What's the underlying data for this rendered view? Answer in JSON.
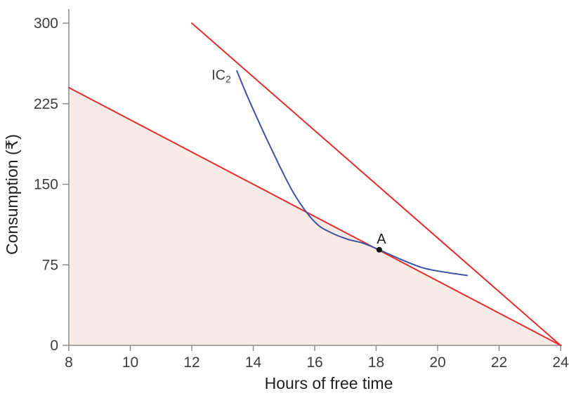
{
  "chart_data": {
    "type": "line",
    "title": "",
    "xlabel": "Hours of free time",
    "ylabel": "Consumption (₹)",
    "xlim": [
      8,
      24
    ],
    "ylim": [
      0,
      300
    ],
    "x_ticks": [
      8,
      10,
      12,
      14,
      16,
      18,
      20,
      22,
      24
    ],
    "y_ticks": [
      0,
      75,
      150,
      225,
      300
    ],
    "grid": false,
    "legend": "none",
    "colors": {
      "budget_line": "#e32d2d",
      "indifference_curve": "#4152a6",
      "feasible_area": "#f8ebe5",
      "axis": "#8c8c8c",
      "tick_text": "#3d3d3d",
      "point": "#111111"
    },
    "series": [
      {
        "name": "budget-constraint-steep",
        "kind": "line",
        "color_key": "budget_line",
        "points": [
          [
            12,
            300
          ],
          [
            24,
            0
          ]
        ]
      },
      {
        "name": "budget-constraint-flat",
        "kind": "line",
        "color_key": "budget_line",
        "points": [
          [
            8,
            240
          ],
          [
            24,
            0
          ]
        ]
      },
      {
        "name": "feasible-set",
        "kind": "area",
        "color_key": "feasible_area",
        "points": [
          [
            8,
            0
          ],
          [
            8,
            240
          ],
          [
            24,
            0
          ]
        ]
      },
      {
        "name": "indifference-curve-2",
        "kind": "curve",
        "label": "IC",
        "label_sub": "2",
        "color_key": "indifference_curve",
        "points": [
          [
            13.46,
            256
          ],
          [
            13.87,
            228
          ],
          [
            14.54,
            186
          ],
          [
            15.31,
            142
          ],
          [
            16.0,
            115
          ],
          [
            16.53,
            105
          ],
          [
            17.05,
            99
          ],
          [
            17.58,
            95
          ],
          [
            18.1,
            89
          ],
          [
            18.81,
            80
          ],
          [
            19.54,
            72
          ],
          [
            20.27,
            68
          ],
          [
            20.98,
            65
          ]
        ]
      }
    ],
    "points": [
      {
        "label": "A",
        "x": 18.1,
        "y": 89
      }
    ]
  }
}
